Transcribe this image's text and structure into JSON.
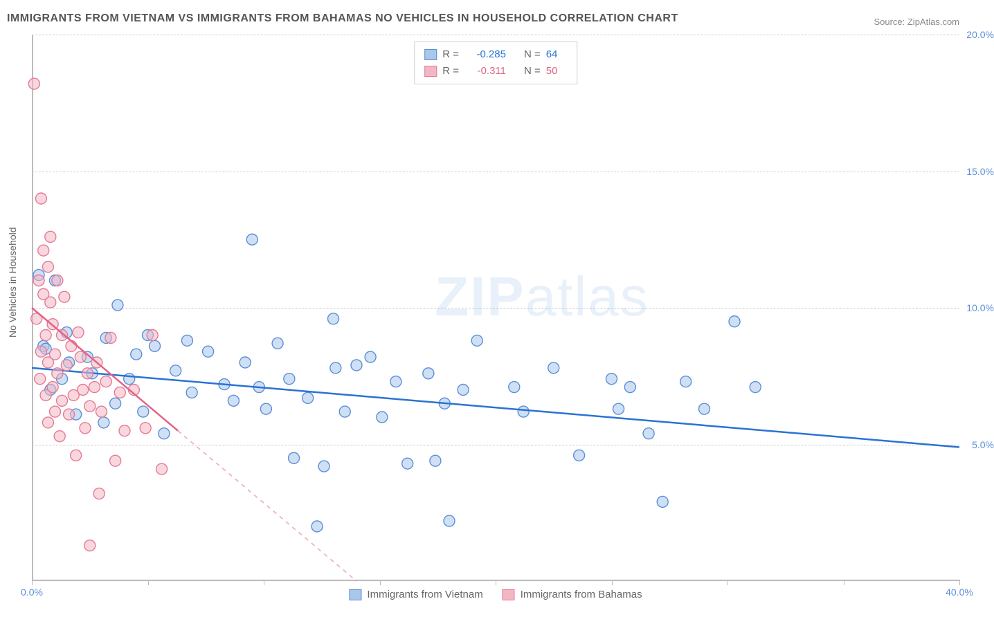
{
  "title": "IMMIGRANTS FROM VIETNAM VS IMMIGRANTS FROM BAHAMAS NO VEHICLES IN HOUSEHOLD CORRELATION CHART",
  "source_label": "Source: ZipAtlas.com",
  "y_axis_label": "No Vehicles in Household",
  "watermark": "ZIPatlas",
  "chart": {
    "type": "scatter",
    "background_color": "#ffffff",
    "grid_color": "#cccccc",
    "axis_color": "#bbbbbb",
    "xlim": [
      0,
      40
    ],
    "ylim": [
      0,
      20
    ],
    "x_ticks": [
      0,
      5,
      10,
      15,
      20,
      25,
      30,
      35,
      40
    ],
    "x_tick_labels": {
      "0": "0.0%",
      "40": "40.0%"
    },
    "y_ticks": [
      5,
      10,
      15,
      20
    ],
    "y_tick_labels": {
      "5": "5.0%",
      "10": "10.0%",
      "15": "15.0%",
      "20": "20.0%"
    },
    "y_label_color": "#5b8fd8",
    "x_label_color": "#5b8fd8",
    "marker_radius": 8,
    "marker_opacity": 0.55,
    "series": [
      {
        "name": "Immigrants from Vietnam",
        "fill_color": "#a8c7eb",
        "stroke_color": "#5b8fd8",
        "trend_color": "#2a73d4",
        "R": "-0.285",
        "N": "64",
        "trend_line": {
          "x1": 0,
          "y1": 7.8,
          "x2": 40,
          "y2": 4.9,
          "dash_after_x": 40
        },
        "points": [
          [
            0.3,
            11.2
          ],
          [
            0.5,
            8.6
          ],
          [
            0.6,
            8.5
          ],
          [
            0.8,
            7.0
          ],
          [
            1.0,
            11.0
          ],
          [
            1.3,
            7.4
          ],
          [
            1.5,
            9.1
          ],
          [
            1.6,
            8.0
          ],
          [
            1.9,
            6.1
          ],
          [
            2.4,
            8.2
          ],
          [
            2.6,
            7.6
          ],
          [
            3.1,
            5.8
          ],
          [
            3.2,
            8.9
          ],
          [
            3.6,
            6.5
          ],
          [
            3.7,
            10.1
          ],
          [
            4.2,
            7.4
          ],
          [
            4.5,
            8.3
          ],
          [
            4.8,
            6.2
          ],
          [
            5.0,
            9.0
          ],
          [
            5.3,
            8.6
          ],
          [
            5.7,
            5.4
          ],
          [
            6.2,
            7.7
          ],
          [
            6.7,
            8.8
          ],
          [
            6.9,
            6.9
          ],
          [
            7.6,
            8.4
          ],
          [
            8.3,
            7.2
          ],
          [
            8.7,
            6.6
          ],
          [
            9.2,
            8.0
          ],
          [
            9.5,
            12.5
          ],
          [
            9.8,
            7.1
          ],
          [
            10.1,
            6.3
          ],
          [
            10.6,
            8.7
          ],
          [
            11.1,
            7.4
          ],
          [
            11.3,
            4.5
          ],
          [
            11.9,
            6.7
          ],
          [
            12.3,
            2.0
          ],
          [
            12.6,
            4.2
          ],
          [
            13.0,
            9.6
          ],
          [
            13.1,
            7.8
          ],
          [
            13.5,
            6.2
          ],
          [
            14.0,
            7.9
          ],
          [
            14.6,
            8.2
          ],
          [
            15.1,
            6.0
          ],
          [
            15.7,
            7.3
          ],
          [
            16.2,
            4.3
          ],
          [
            17.1,
            7.6
          ],
          [
            17.4,
            4.4
          ],
          [
            17.8,
            6.5
          ],
          [
            18.0,
            2.2
          ],
          [
            18.6,
            7.0
          ],
          [
            19.2,
            8.8
          ],
          [
            20.8,
            7.1
          ],
          [
            21.2,
            6.2
          ],
          [
            22.5,
            7.8
          ],
          [
            23.6,
            4.6
          ],
          [
            25.0,
            7.4
          ],
          [
            25.3,
            6.3
          ],
          [
            25.8,
            7.1
          ],
          [
            26.6,
            5.4
          ],
          [
            27.2,
            2.9
          ],
          [
            28.2,
            7.3
          ],
          [
            29.0,
            6.3
          ],
          [
            30.3,
            9.5
          ],
          [
            31.2,
            7.1
          ]
        ]
      },
      {
        "name": "Immigrants from Bahamas",
        "fill_color": "#f3b7c4",
        "stroke_color": "#e77a94",
        "trend_color": "#e26484",
        "R": "-0.311",
        "N": "50",
        "trend_line": {
          "x1": 0,
          "y1": 10.0,
          "x2": 14,
          "y2": 0.0,
          "solid_until_x": 6.3
        },
        "points": [
          [
            0.1,
            18.2
          ],
          [
            0.2,
            9.6
          ],
          [
            0.3,
            11.0
          ],
          [
            0.35,
            7.4
          ],
          [
            0.4,
            14.0
          ],
          [
            0.4,
            8.4
          ],
          [
            0.5,
            12.1
          ],
          [
            0.5,
            10.5
          ],
          [
            0.6,
            6.8
          ],
          [
            0.6,
            9.0
          ],
          [
            0.7,
            11.5
          ],
          [
            0.7,
            8.0
          ],
          [
            0.7,
            5.8
          ],
          [
            0.8,
            10.2
          ],
          [
            0.8,
            12.6
          ],
          [
            0.9,
            7.1
          ],
          [
            0.9,
            9.4
          ],
          [
            1.0,
            6.2
          ],
          [
            1.0,
            8.3
          ],
          [
            1.1,
            11.0
          ],
          [
            1.1,
            7.6
          ],
          [
            1.2,
            5.3
          ],
          [
            1.3,
            9.0
          ],
          [
            1.3,
            6.6
          ],
          [
            1.4,
            10.4
          ],
          [
            1.5,
            7.9
          ],
          [
            1.6,
            6.1
          ],
          [
            1.7,
            8.6
          ],
          [
            1.8,
            6.8
          ],
          [
            1.9,
            4.6
          ],
          [
            2.0,
            9.1
          ],
          [
            2.1,
            8.2
          ],
          [
            2.2,
            7.0
          ],
          [
            2.3,
            5.6
          ],
          [
            2.4,
            7.6
          ],
          [
            2.5,
            6.4
          ],
          [
            2.5,
            1.3
          ],
          [
            2.7,
            7.1
          ],
          [
            2.8,
            8.0
          ],
          [
            2.9,
            3.2
          ],
          [
            3.0,
            6.2
          ],
          [
            3.2,
            7.3
          ],
          [
            3.4,
            8.9
          ],
          [
            3.6,
            4.4
          ],
          [
            3.8,
            6.9
          ],
          [
            4.0,
            5.5
          ],
          [
            4.4,
            7.0
          ],
          [
            4.9,
            5.6
          ],
          [
            5.2,
            9.0
          ],
          [
            5.6,
            4.1
          ]
        ]
      }
    ]
  },
  "legend_labels": {
    "R": "R =",
    "N": "N ="
  },
  "bottom_legend": [
    "Immigrants from Vietnam",
    "Immigrants from Bahamas"
  ]
}
